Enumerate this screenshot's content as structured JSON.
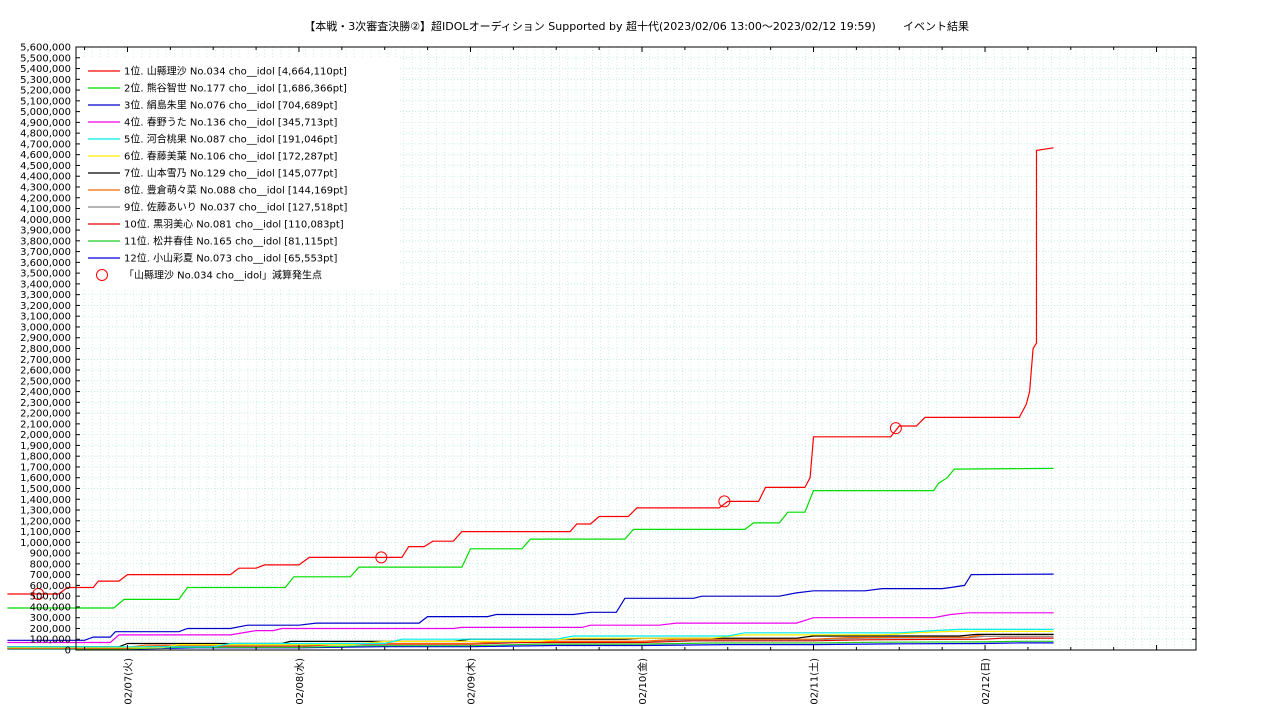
{
  "chart_data": {
    "type": "line",
    "title": "【本戦・3次審査決勝②】超IDOLオーディション Supported by 超十代(2023/02/06 13:00～2023/02/12 19:59)",
    "subtitle": "イベント結果",
    "xlabel": "",
    "ylabel": "",
    "x_ticks": [
      {
        "label": "02/07(火)",
        "day": 1
      },
      {
        "label": "02/08(水)",
        "day": 2
      },
      {
        "label": "02/09(木)",
        "day": 3
      },
      {
        "label": "02/10(金)",
        "day": 4
      },
      {
        "label": "02/11(土)",
        "day": 5
      },
      {
        "label": "02/12(日)",
        "day": 6
      }
    ],
    "xlim_days": [
      0.7,
      7.23
    ],
    "ylim": [
      0,
      5600000
    ],
    "y_tick_step": 100000,
    "y_tick_labels": [
      "0",
      "100,000",
      "200,000",
      "300,000",
      "400,000",
      "500,000",
      "600,000",
      "700,000",
      "800,000",
      "900,000",
      "1,000,000",
      "1,100,000",
      "1,200,000",
      "1,300,000",
      "1,400,000",
      "1,500,000",
      "1,600,000",
      "1,700,000",
      "1,800,000",
      "1,900,000",
      "2,000,000",
      "2,100,000",
      "2,200,000",
      "2,300,000",
      "2,400,000",
      "2,500,000",
      "2,600,000",
      "2,700,000",
      "2,800,000",
      "2,900,000",
      "3,000,000",
      "3,100,000",
      "3,200,000",
      "3,300,000",
      "3,400,000",
      "3,500,000",
      "3,600,000",
      "3,700,000",
      "3,800,000",
      "3,900,000",
      "4,000,000",
      "4,100,000",
      "4,200,000",
      "4,300,000",
      "4,400,000",
      "4,500,000",
      "4,600,000",
      "4,700,000",
      "4,800,000",
      "4,900,000",
      "5,000,000",
      "5,100,000",
      "5,200,000",
      "5,300,000",
      "5,400,000",
      "5,500,000",
      "5,600,000"
    ],
    "grid": true,
    "legend_position": "top-left",
    "series": [
      {
        "name": "1位. 山縣理沙 No.034 cho__idol [4,664,110pt]",
        "color": "#ff0000",
        "points": [
          [
            0.3,
            520000
          ],
          [
            0.6,
            520000
          ],
          [
            0.65,
            580000
          ],
          [
            0.8,
            580000
          ],
          [
            0.83,
            640000
          ],
          [
            0.95,
            640000
          ],
          [
            1.0,
            700000
          ],
          [
            1.6,
            700000
          ],
          [
            1.65,
            760000
          ],
          [
            1.75,
            760000
          ],
          [
            1.8,
            790000
          ],
          [
            2.0,
            790000
          ],
          [
            2.06,
            860000
          ],
          [
            2.6,
            860000
          ],
          [
            2.64,
            960000
          ],
          [
            2.73,
            960000
          ],
          [
            2.78,
            1010000
          ],
          [
            2.9,
            1010000
          ],
          [
            2.95,
            1100000
          ],
          [
            3.58,
            1100000
          ],
          [
            3.62,
            1170000
          ],
          [
            3.7,
            1170000
          ],
          [
            3.75,
            1240000
          ],
          [
            3.92,
            1240000
          ],
          [
            3.97,
            1320000
          ],
          [
            4.45,
            1320000
          ],
          [
            4.5,
            1380000
          ],
          [
            4.68,
            1380000
          ],
          [
            4.72,
            1510000
          ],
          [
            4.95,
            1510000
          ],
          [
            4.98,
            1600000
          ],
          [
            5.0,
            1980000
          ],
          [
            5.45,
            1980000
          ],
          [
            5.5,
            2080000
          ],
          [
            5.6,
            2080000
          ],
          [
            5.65,
            2160000
          ],
          [
            6.2,
            2160000
          ],
          [
            6.24,
            2280000
          ],
          [
            6.26,
            2400000
          ],
          [
            6.28,
            2800000
          ],
          [
            6.3,
            2850000
          ],
          [
            6.3,
            4640000
          ],
          [
            6.4,
            4664110
          ]
        ]
      },
      {
        "name": "2位. 熊谷智世 No.177 cho__idol [1,686,366pt]",
        "color": "#00dd00",
        "points": [
          [
            0.3,
            390000
          ],
          [
            0.92,
            390000
          ],
          [
            0.98,
            470000
          ],
          [
            1.3,
            470000
          ],
          [
            1.35,
            580000
          ],
          [
            1.92,
            580000
          ],
          [
            1.97,
            680000
          ],
          [
            2.3,
            680000
          ],
          [
            2.35,
            770000
          ],
          [
            2.95,
            770000
          ],
          [
            3.0,
            940000
          ],
          [
            3.3,
            940000
          ],
          [
            3.35,
            1030000
          ],
          [
            3.9,
            1030000
          ],
          [
            3.95,
            1120000
          ],
          [
            4.6,
            1120000
          ],
          [
            4.65,
            1180000
          ],
          [
            4.8,
            1180000
          ],
          [
            4.85,
            1280000
          ],
          [
            4.95,
            1280000
          ],
          [
            5.0,
            1480000
          ],
          [
            5.7,
            1480000
          ],
          [
            5.73,
            1550000
          ],
          [
            5.78,
            1600000
          ],
          [
            5.82,
            1680000
          ],
          [
            6.4,
            1686366
          ]
        ]
      },
      {
        "name": "3位. 絹島朱里 No.076 cho__idol [704,689pt]",
        "color": "#0000cc",
        "points": [
          [
            0.3,
            90000
          ],
          [
            0.75,
            90000
          ],
          [
            0.8,
            120000
          ],
          [
            0.9,
            120000
          ],
          [
            0.93,
            170000
          ],
          [
            1.3,
            170000
          ],
          [
            1.35,
            200000
          ],
          [
            1.6,
            200000
          ],
          [
            1.7,
            230000
          ],
          [
            2.0,
            230000
          ],
          [
            2.1,
            250000
          ],
          [
            2.7,
            250000
          ],
          [
            2.75,
            310000
          ],
          [
            3.1,
            310000
          ],
          [
            3.15,
            330000
          ],
          [
            3.6,
            330000
          ],
          [
            3.7,
            350000
          ],
          [
            3.85,
            350000
          ],
          [
            3.9,
            480000
          ],
          [
            4.3,
            480000
          ],
          [
            4.35,
            500000
          ],
          [
            4.8,
            500000
          ],
          [
            4.9,
            530000
          ],
          [
            5.0,
            550000
          ],
          [
            5.3,
            550000
          ],
          [
            5.4,
            570000
          ],
          [
            5.75,
            570000
          ],
          [
            5.8,
            580000
          ],
          [
            5.88,
            600000
          ],
          [
            5.92,
            700000
          ],
          [
            6.4,
            704689
          ]
        ]
      },
      {
        "name": "4位. 春野うた No.136 cho__idol [345,713pt]",
        "color": "#ee00ee",
        "points": [
          [
            0.3,
            70000
          ],
          [
            0.9,
            70000
          ],
          [
            0.95,
            140000
          ],
          [
            1.6,
            140000
          ],
          [
            1.75,
            180000
          ],
          [
            1.85,
            180000
          ],
          [
            1.9,
            200000
          ],
          [
            2.9,
            200000
          ],
          [
            2.95,
            210000
          ],
          [
            3.65,
            210000
          ],
          [
            3.7,
            230000
          ],
          [
            4.1,
            230000
          ],
          [
            4.2,
            250000
          ],
          [
            4.9,
            250000
          ],
          [
            5.0,
            300000
          ],
          [
            5.7,
            300000
          ],
          [
            5.8,
            330000
          ],
          [
            5.9,
            345713
          ],
          [
            6.4,
            345713
          ]
        ]
      },
      {
        "name": "5位. 河合桃果 No.087 cho__idol [191,046pt]",
        "color": "#00eeee",
        "points": [
          [
            0.3,
            30000
          ],
          [
            1.5,
            30000
          ],
          [
            1.6,
            60000
          ],
          [
            2.5,
            60000
          ],
          [
            2.6,
            100000
          ],
          [
            3.5,
            100000
          ],
          [
            3.6,
            130000
          ],
          [
            4.5,
            130000
          ],
          [
            4.6,
            160000
          ],
          [
            5.5,
            160000
          ],
          [
            5.7,
            180000
          ],
          [
            5.85,
            191046
          ],
          [
            6.4,
            191046
          ]
        ]
      },
      {
        "name": "6位. 春藤美葉 No.106 cho__idol [172,287pt]",
        "color": "#ffee00",
        "points": [
          [
            0.3,
            20000
          ],
          [
            1.2,
            20000
          ],
          [
            1.3,
            50000
          ],
          [
            2.3,
            50000
          ],
          [
            2.5,
            80000
          ],
          [
            3.4,
            80000
          ],
          [
            3.6,
            110000
          ],
          [
            4.4,
            110000
          ],
          [
            4.6,
            140000
          ],
          [
            5.4,
            140000
          ],
          [
            5.6,
            160000
          ],
          [
            5.8,
            172287
          ],
          [
            6.4,
            172287
          ]
        ]
      },
      {
        "name": "7位. 山本雪乃 No.129 cho__idol [145,077pt]",
        "color": "#000000",
        "points": [
          [
            0.3,
            30000
          ],
          [
            0.95,
            30000
          ],
          [
            1.0,
            60000
          ],
          [
            1.9,
            60000
          ],
          [
            1.95,
            80000
          ],
          [
            2.9,
            80000
          ],
          [
            3.0,
            100000
          ],
          [
            3.9,
            100000
          ],
          [
            4.0,
            110000
          ],
          [
            4.9,
            110000
          ],
          [
            5.0,
            130000
          ],
          [
            5.85,
            130000
          ],
          [
            5.95,
            145077
          ],
          [
            6.4,
            145077
          ]
        ]
      },
      {
        "name": "8位. 豊倉萌々菜 No.088 cho__idol [144,169pt]",
        "color": "#ff6600",
        "points": [
          [
            0.3,
            25000
          ],
          [
            1.0,
            25000
          ],
          [
            1.1,
            45000
          ],
          [
            2.0,
            45000
          ],
          [
            2.2,
            60000
          ],
          [
            3.0,
            60000
          ],
          [
            3.2,
            80000
          ],
          [
            4.0,
            80000
          ],
          [
            4.2,
            100000
          ],
          [
            5.0,
            100000
          ],
          [
            5.2,
            115000
          ],
          [
            5.9,
            120000
          ],
          [
            6.0,
            144169
          ],
          [
            6.4,
            144169
          ]
        ]
      },
      {
        "name": "9位. 佐藤あいり No.037 cho__idol [127,518pt]",
        "color": "#888888",
        "points": [
          [
            0.3,
            20000
          ],
          [
            1.0,
            20000
          ],
          [
            1.2,
            40000
          ],
          [
            2.0,
            40000
          ],
          [
            2.2,
            60000
          ],
          [
            3.0,
            60000
          ],
          [
            3.3,
            80000
          ],
          [
            4.0,
            80000
          ],
          [
            4.3,
            95000
          ],
          [
            5.0,
            95000
          ],
          [
            5.3,
            110000
          ],
          [
            5.9,
            115000
          ],
          [
            6.0,
            127518
          ],
          [
            6.4,
            127518
          ]
        ]
      },
      {
        "name": "10位. 黒羽美心 No.081 cho__idol [110,083pt]",
        "color": "#dd0000",
        "points": [
          [
            0.3,
            15000
          ],
          [
            1.0,
            15000
          ],
          [
            1.2,
            35000
          ],
          [
            2.0,
            35000
          ],
          [
            2.3,
            55000
          ],
          [
            3.0,
            55000
          ],
          [
            3.3,
            70000
          ],
          [
            4.0,
            70000
          ],
          [
            4.3,
            85000
          ],
          [
            5.0,
            85000
          ],
          [
            5.3,
            95000
          ],
          [
            6.0,
            100000
          ],
          [
            6.1,
            110083
          ],
          [
            6.4,
            110083
          ]
        ]
      },
      {
        "name": "11位. 松井春佳 No.165 cho__idol [81,115pt]",
        "color": "#22cc22",
        "points": [
          [
            0.3,
            10000
          ],
          [
            1.0,
            10000
          ],
          [
            1.3,
            25000
          ],
          [
            2.0,
            25000
          ],
          [
            2.4,
            40000
          ],
          [
            3.0,
            40000
          ],
          [
            3.4,
            55000
          ],
          [
            4.0,
            55000
          ],
          [
            4.4,
            65000
          ],
          [
            5.0,
            65000
          ],
          [
            5.4,
            72000
          ],
          [
            6.0,
            75000
          ],
          [
            6.2,
            81115
          ],
          [
            6.4,
            81115
          ]
        ]
      },
      {
        "name": "12位. 小山彩夏 No.073 cho__idol [65,553pt]",
        "color": "#0000dd",
        "points": [
          [
            0.3,
            8000
          ],
          [
            1.0,
            8000
          ],
          [
            1.4,
            20000
          ],
          [
            2.0,
            20000
          ],
          [
            2.5,
            32000
          ],
          [
            3.0,
            32000
          ],
          [
            3.5,
            42000
          ],
          [
            4.0,
            42000
          ],
          [
            4.5,
            50000
          ],
          [
            5.0,
            50000
          ],
          [
            5.5,
            58000
          ],
          [
            6.0,
            60000
          ],
          [
            6.2,
            65553
          ],
          [
            6.4,
            65553
          ]
        ]
      }
    ],
    "markers": {
      "name": "「山縣理沙 No.034 cho__idol」減算発生点",
      "color": "#ff0000",
      "points": [
        [
          0.48,
          520000
        ],
        [
          2.48,
          860000
        ],
        [
          4.48,
          1380000
        ],
        [
          5.48,
          2060000
        ]
      ]
    }
  }
}
